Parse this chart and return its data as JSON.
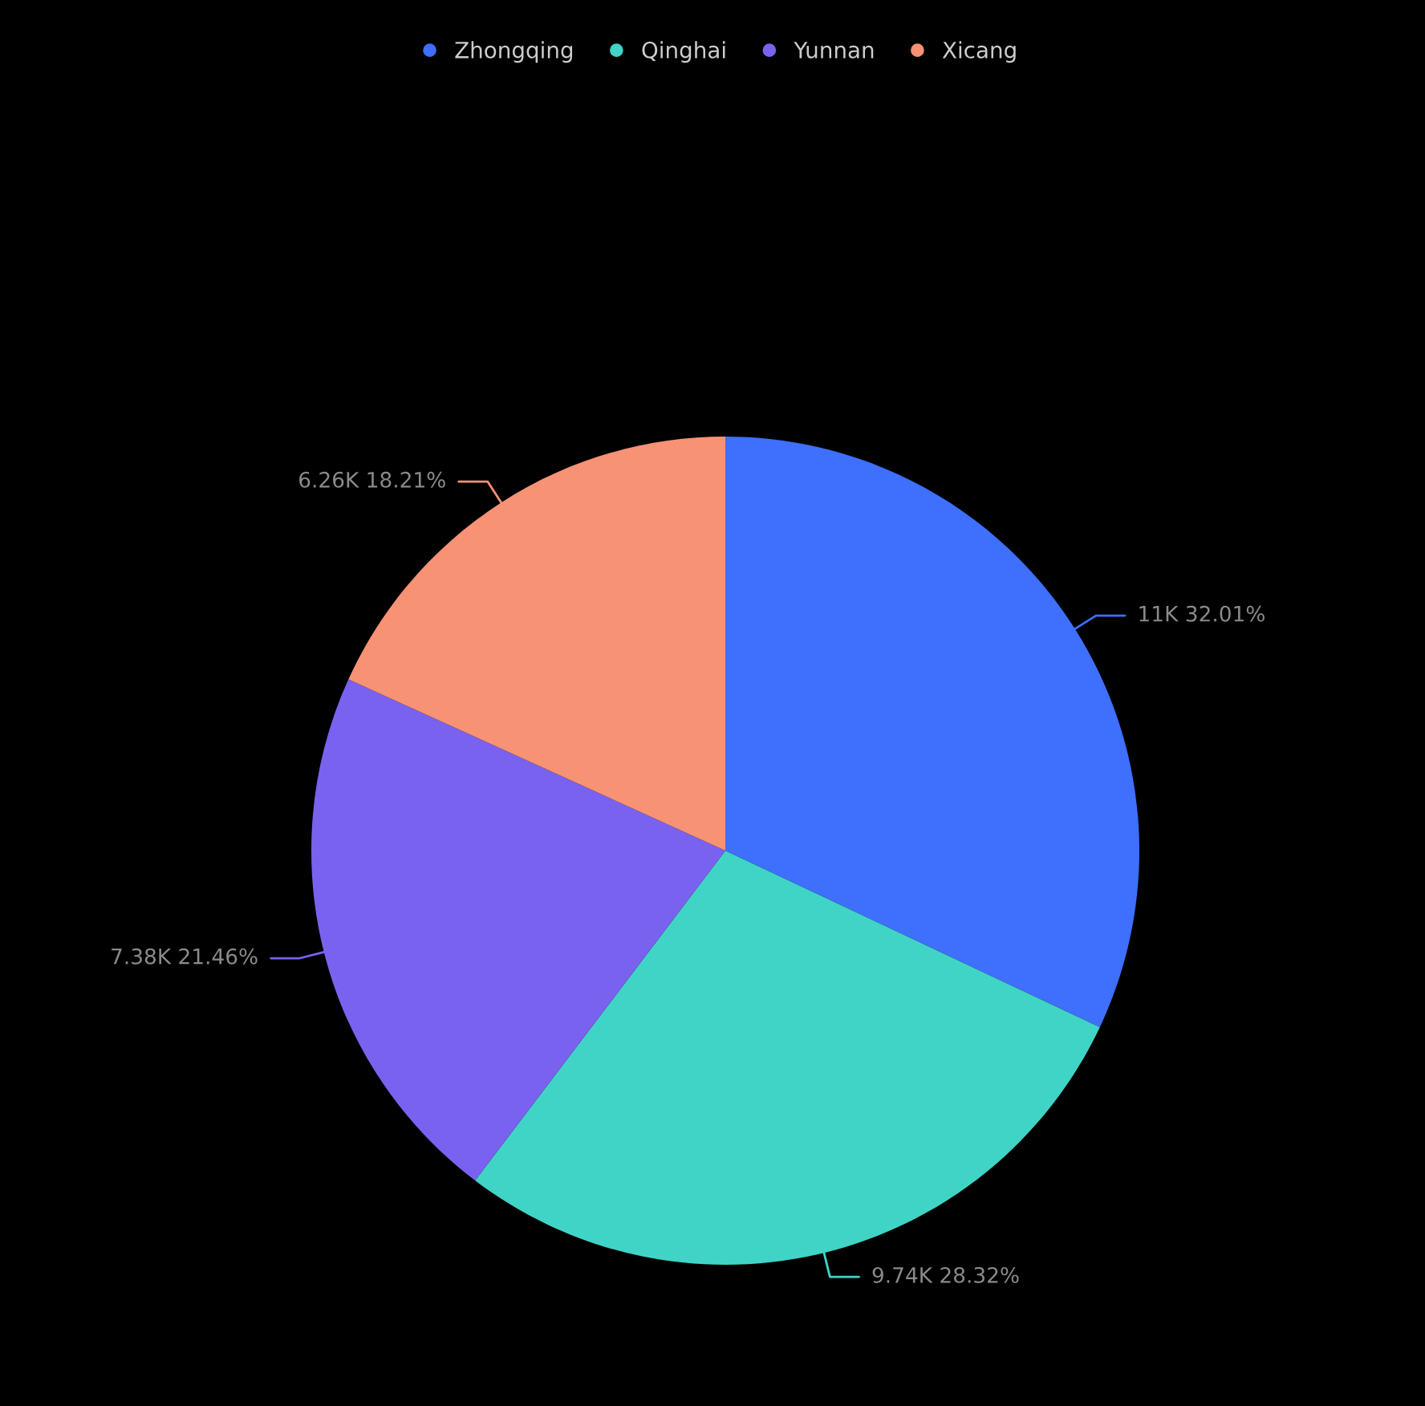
{
  "chart_data": {
    "type": "pie",
    "categories": [
      "Zhongqing",
      "Qinghai",
      "Yunnan",
      "Xicang"
    ],
    "values": [
      32.01,
      28.32,
      21.46,
      18.21
    ],
    "colors": [
      "#3e6ffd",
      "#40d4c7",
      "#7a62f0",
      "#f79274"
    ],
    "value_labels": [
      "11K 32.01%",
      "9.74K 28.32%",
      "7.38K 21.46%",
      "6.26K 18.21%"
    ],
    "legend": "top"
  }
}
